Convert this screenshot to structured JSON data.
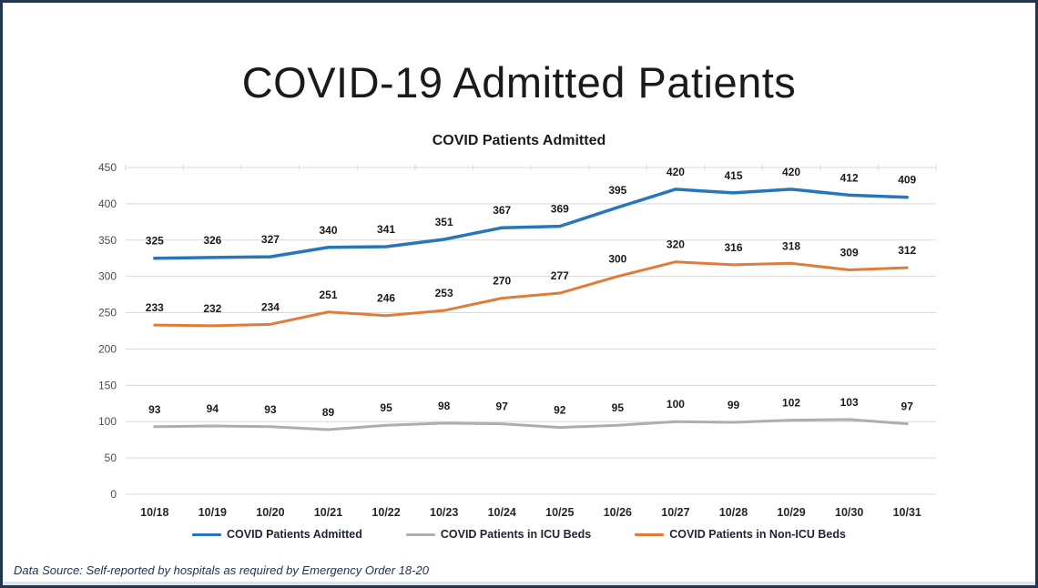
{
  "main": {
    "title": "COVID-19 Admitted Patients"
  },
  "chart_data": {
    "type": "line",
    "title": "COVID Patients Admitted",
    "categories": [
      "10/18",
      "10/19",
      "10/20",
      "10/21",
      "10/22",
      "10/23",
      "10/24",
      "10/25",
      "10/26",
      "10/27",
      "10/28",
      "10/29",
      "10/30",
      "10/31"
    ],
    "series": [
      {
        "name": "COVID Patients Admitted",
        "color": "#2776b9",
        "values": [
          325,
          326,
          327,
          340,
          341,
          351,
          367,
          369,
          395,
          420,
          415,
          420,
          412,
          409
        ]
      },
      {
        "name": "COVID Patients in ICU Beds",
        "color": "#aeaeae",
        "values": [
          93,
          94,
          93,
          89,
          95,
          98,
          97,
          92,
          95,
          100,
          99,
          102,
          103,
          97
        ]
      },
      {
        "name": "COVID Patients in Non-ICU Beds",
        "color": "#e07c39",
        "values": [
          233,
          232,
          234,
          251,
          246,
          253,
          270,
          277,
          300,
          320,
          316,
          318,
          309,
          312
        ]
      }
    ],
    "ylim": [
      0,
      450
    ],
    "ytick_step": 50,
    "yticks": [
      0,
      50,
      100,
      150,
      200,
      250,
      300,
      350,
      400,
      450
    ],
    "grid": "horizontal",
    "legend_position": "bottom",
    "data_labels": true
  },
  "footer": {
    "source": "Data Source: Self-reported by hospitals as required by Emergency Order 18-20"
  }
}
